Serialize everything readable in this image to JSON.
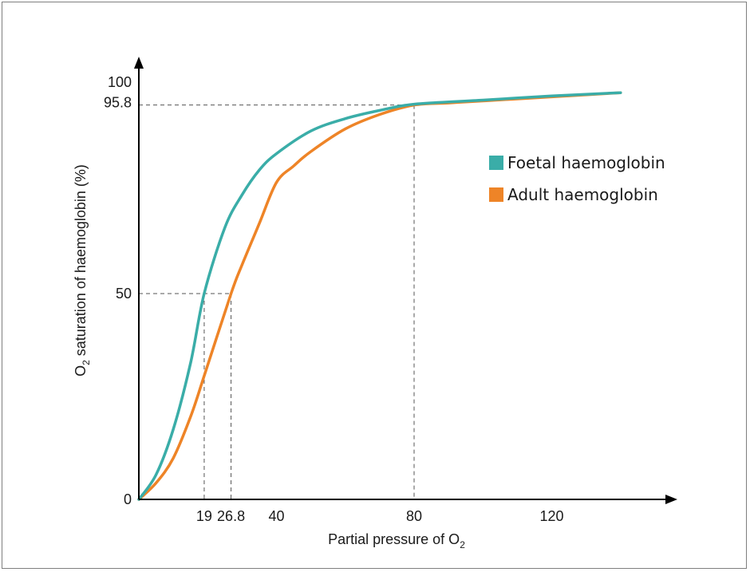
{
  "chart_data": {
    "type": "line",
    "title": "",
    "xlabel": "Partial pressure of O",
    "xlabel_sub": "2",
    "ylabel": "O",
    "ylabel_sub": "2",
    "ylabel_rest": " saturation of haemoglobin (%)",
    "xlim": [
      0,
      150
    ],
    "ylim": [
      0,
      100
    ],
    "grid": false,
    "legend_position": "right",
    "x_ticks": [
      {
        "value": 19,
        "label": "19"
      },
      {
        "value": 26.8,
        "label": "26.8"
      },
      {
        "value": 40,
        "label": "40"
      },
      {
        "value": 80,
        "label": "80"
      },
      {
        "value": 120,
        "label": "120"
      }
    ],
    "y_ticks": [
      {
        "value": 0,
        "label": "0"
      },
      {
        "value": 50,
        "label": "50"
      },
      {
        "value": 95.8,
        "label": "95.8"
      },
      {
        "value": 100,
        "label": "100"
      }
    ],
    "reference_lines": [
      {
        "x": 19,
        "y": 50
      },
      {
        "x": 26.8,
        "y": 50
      },
      {
        "x": 80,
        "y": 95.8
      }
    ],
    "series": [
      {
        "name": "Foetal haemoglobin",
        "color": "#3aada8",
        "x": [
          0,
          5,
          10,
          15,
          19,
          25,
          30,
          35,
          40,
          50,
          60,
          70,
          80,
          100,
          120,
          140
        ],
        "y": [
          0,
          6,
          17,
          33,
          50,
          66,
          74,
          80,
          84,
          89.5,
          92.5,
          94.5,
          96,
          97,
          98,
          98.8
        ]
      },
      {
        "name": "Adult haemoglobin",
        "color": "#ee8427",
        "x": [
          0,
          5,
          10,
          15,
          19,
          26.8,
          30,
          35,
          40,
          45,
          50,
          60,
          70,
          80,
          90,
          100,
          120,
          140
        ],
        "y": [
          0,
          4,
          10,
          20,
          30,
          50,
          57,
          67,
          77,
          81,
          84.5,
          90,
          93.5,
          95.8,
          96.3,
          96.8,
          97.8,
          98.8
        ]
      }
    ]
  }
}
